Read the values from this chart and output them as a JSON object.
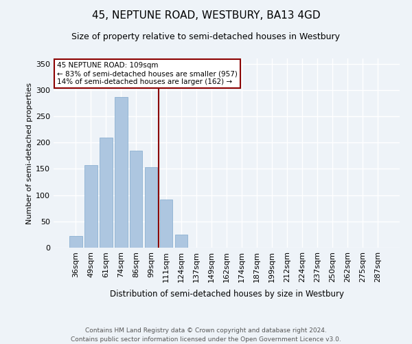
{
  "title1": "45, NEPTUNE ROAD, WESTBURY, BA13 4GD",
  "title2": "Size of property relative to semi-detached houses in Westbury",
  "xlabel": "Distribution of semi-detached houses by size in Westbury",
  "ylabel": "Number of semi-detached properties",
  "categories": [
    "36sqm",
    "49sqm",
    "61sqm",
    "74sqm",
    "86sqm",
    "99sqm",
    "111sqm",
    "124sqm",
    "137sqm",
    "149sqm",
    "162sqm",
    "174sqm",
    "187sqm",
    "199sqm",
    "212sqm",
    "224sqm",
    "237sqm",
    "250sqm",
    "262sqm",
    "275sqm",
    "287sqm"
  ],
  "values": [
    22,
    157,
    210,
    287,
    184,
    153,
    91,
    25,
    0,
    0,
    0,
    0,
    0,
    0,
    0,
    0,
    0,
    0,
    0,
    0,
    0
  ],
  "bar_color": "#adc6e0",
  "bar_edge_color": "#7fa8cc",
  "highlight_line_color": "#8b0000",
  "annotation_text": "45 NEPTUNE ROAD: 109sqm\n← 83% of semi-detached houses are smaller (957)\n14% of semi-detached houses are larger (162) →",
  "annotation_box_color": "#ffffff",
  "annotation_box_edge": "#8b0000",
  "ylim": [
    0,
    360
  ],
  "yticks": [
    0,
    50,
    100,
    150,
    200,
    250,
    300,
    350
  ],
  "footer": "Contains HM Land Registry data © Crown copyright and database right 2024.\nContains public sector information licensed under the Open Government Licence v3.0.",
  "bg_color": "#eef3f8",
  "plot_bg_color": "#eef3f8",
  "grid_color": "#ffffff"
}
